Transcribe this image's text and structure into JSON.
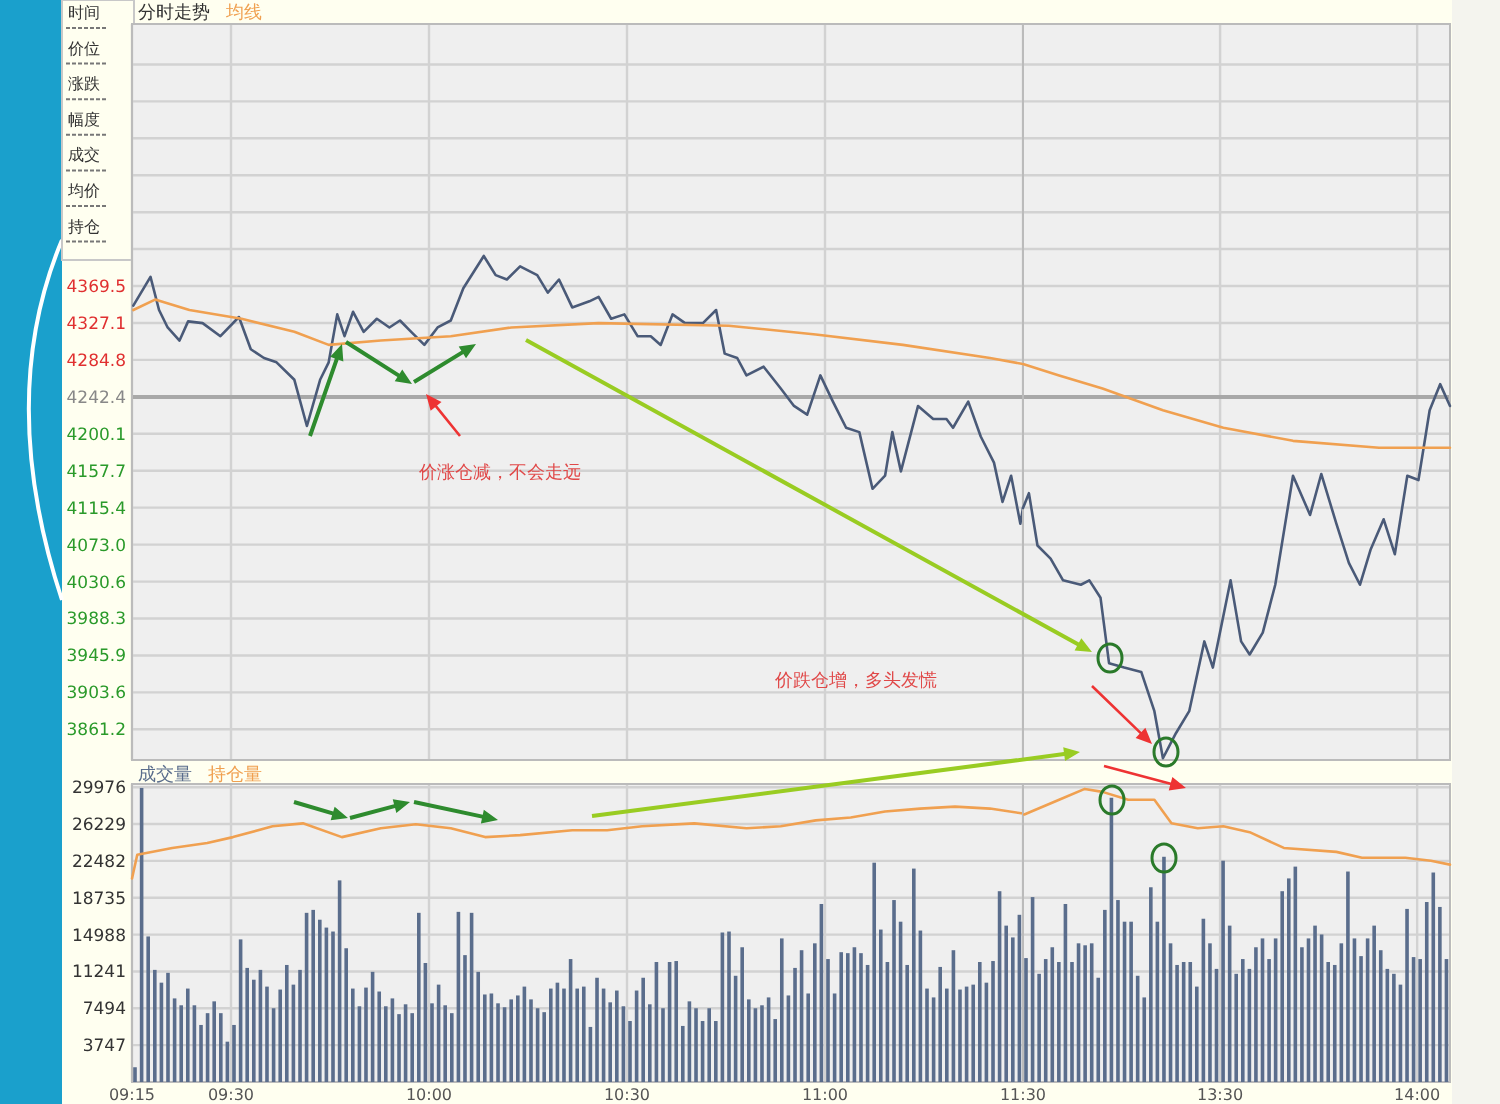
{
  "chart_data": [
    {
      "type": "line",
      "title": "分时走势",
      "xlim": [
        9.25,
        11.5
      ],
      "ylim": [
        3826,
        4670
      ],
      "xticks": [
        {
          "value": 9.25,
          "label": null
        },
        {
          "value": 9.5,
          "label": null
        },
        {
          "value": 10,
          "label": null
        },
        {
          "value": 10.5,
          "label": null
        },
        {
          "value": 11,
          "label": null
        },
        {
          "value": 11.5,
          "label": null
        }
      ],
      "yticks": [
        {
          "value": 4623.6,
          "label": null
        },
        {
          "value": 4581.3,
          "label": null
        },
        {
          "value": 4538.9,
          "label": null
        },
        {
          "value": 4496.6,
          "label": null
        },
        {
          "value": 4454.2,
          "label": null
        },
        {
          "value": 4411.9,
          "label": null
        },
        4369.5,
        4327.1,
        4284.8,
        4242.4,
        4200.1,
        4157.7,
        4115.4,
        {
          "value": 4073.0,
          "label": "4073.0"
        },
        4030.6,
        3988.3,
        3945.9,
        3903.6,
        3861.2
      ],
      "tick_labels": "y",
      "grid": true,
      "legend": "top left",
      "line_style": "solid",
      "ref_lines": [
        {
          "axis": "y",
          "value": 4242.4,
          "color": "#a8a8a8"
        }
      ],
      "annotations": [
        "价涨仓减，不会走远",
        "价跌仓增，多头发慌",
        "时间",
        "价位",
        "涨跌",
        "幅度",
        "成交",
        "均价",
        "持仓"
      ],
      "series": [
        {
          "color": "#4a5a78",
          "x": [
            9.2533,
            9.2967,
            9.3183,
            9.34,
            9.37,
            9.3917,
            9.4283,
            9.4733,
            9.52,
            9.55,
            9.5833,
            9.615,
            9.66,
            9.6917,
            9.725,
            9.7467,
            9.7683,
            9.7867,
            9.8083,
            9.835,
            9.8683,
            9.9,
            9.9267,
            9.955,
            9.9883,
            10.0217,
            10.055,
            10.0867,
            10.1383,
            10.1683,
            10.1967,
            10.23,
            10.2733,
            10.3,
            10.3283,
            10.3617,
            10.405,
            10.4283,
            10.46,
            10.4933,
            10.5267,
            10.56,
            10.585,
            10.615,
            10.6467,
            10.6917,
            10.725,
            10.7467,
            10.7783,
            10.8017,
            10.845,
            10.8883,
            10.9217,
            10.955,
            10.9883,
            11.02,
            11.0533,
            11.0867,
            11.12,
            11.1517,
            11.17,
            11.1917,
            11.235,
            11.2733,
            11.3067,
            11.3233,
            11.3617,
            11.3933,
            11.4267,
            11.4483,
            11.47,
            11.4933,
            11.5
          ],
          "values": [
            4347,
            4380,
            4342,
            4322,
            4307,
            4329,
            4327,
            4312,
            4334,
            4297,
            4287,
            4282,
            4262,
            4209,
            4262,
            4282,
            4337,
            4312,
            4340,
            4317,
            4332,
            4322,
            4330,
            4317,
            4302,
            4322,
            4330,
            4367,
            4404,
            4382,
            4377,
            4392,
            4382,
            4362,
            4377,
            4345,
            4352,
            4357,
            4332,
            4337,
            4312,
            4312,
            4302,
            4337,
            4327,
            4327,
            4342,
            4292,
            4287,
            4267,
            4277,
            4252,
            4232,
            4222,
            4267,
            4237,
            4207,
            4202,
            4137,
            4152,
            4202,
            4157,
            4232,
            4217,
            4217,
            4207,
            4237,
            4197,
            4167,
            4122,
            4152,
            4097,
            4115
          ]
        },
        {
          "name": "均线",
          "color": "#f0a050",
          "x": [
            9.2533,
            9.3083,
            9.395,
            9.5267,
            9.66,
            9.7467,
            9.8783,
            10.055,
            10.2083,
            10.4283,
            10.7567,
            10.9767,
            11.1967,
            11.4167,
            11.5
          ],
          "values": [
            4342,
            4354,
            4342,
            4332,
            4317,
            4302,
            4307,
            4312,
            4322,
            4327,
            4324,
            4314,
            4302,
            4287,
            4280
          ]
        }
      ]
    },
    {
      "type": "line",
      "xlim": [
        13,
        14.0833
      ],
      "ylim": [
        3826,
        4670
      ],
      "xticks": [
        {
          "value": 13.5,
          "label": null
        },
        {
          "value": 14,
          "label": null
        }
      ],
      "yticks": [
        {
          "value": 4623.6,
          "label": null
        },
        {
          "value": 4581.3,
          "label": null
        },
        {
          "value": 4538.9,
          "label": null
        },
        {
          "value": 4496.6,
          "label": null
        },
        {
          "value": 4454.2,
          "label": null
        },
        {
          "value": 4411.9,
          "label": null
        },
        4369.5,
        4327.1,
        4284.8,
        4242.4,
        4200.1,
        4157.7,
        4115.4,
        4073,
        4030.6,
        3988.3,
        3945.9,
        3903.6,
        3861.2
      ],
      "tick_labels": false,
      "grid": true,
      "line_style": "solid",
      "ref_lines": [
        {
          "axis": "y",
          "value": 4242.4,
          "color": "#a8a8a8"
        }
      ],
      "series": [
        {
          "color": "#4a5a78",
          "x": [
            13,
            13.015,
            13.0367,
            13.07,
            13.1017,
            13.1467,
            13.1683,
            13.1967,
            13.2183,
            13.2567,
            13.3,
            13.3333,
            13.355,
            13.3883,
            13.4217,
            13.46,
            13.4817,
            13.5267,
            13.5533,
            13.575,
            13.6083,
            13.64,
            13.685,
            13.7283,
            13.7567,
            13.795,
            13.8267,
            13.855,
            13.8817,
            13.915,
            13.9433,
            13.975,
            14.0033,
            14.0317,
            14.0583,
            14.0833
          ],
          "values": [
            4115,
            4132,
            4072,
            4057,
            4032,
            4027,
            4032,
            4012,
            3937,
            3932,
            3927,
            3882,
            3828,
            3857,
            3882,
            3962,
            3932,
            4032,
            3962,
            3947,
            3972,
            4027,
            4152,
            4107,
            4154,
            4097,
            4052,
            4027,
            4067,
            4102,
            4062,
            4152,
            4147,
            4227,
            4257,
            4232
          ]
        },
        {
          "color": "#f0a050",
          "x": [
            13,
            13.0917,
            13.2017,
            13.355,
            13.5083,
            13.685,
            13.9033,
            14.0833
          ],
          "values": [
            4280,
            4267,
            4252,
            4227,
            4207,
            4192,
            4184,
            4184
          ]
        }
      ]
    },
    {
      "type": "bar",
      "xlim": [
        9.25,
        11.5
      ],
      "ylim": [
        0,
        30300
      ],
      "xticks": [
        {
          "value": 9.25,
          "label": "09:15"
        },
        {
          "value": 9.5,
          "label": "09:30"
        },
        {
          "value": 10,
          "label": "10:00"
        },
        {
          "value": 10.5,
          "label": "10:30"
        },
        {
          "value": 11,
          "label": "11:00"
        },
        {
          "value": 11.5,
          "label": "11:30"
        }
      ],
      "yticks": [
        3747,
        7494,
        11241,
        14988,
        18735,
        22482,
        26229,
        29976
      ],
      "grid": true,
      "legend": "top left",
      "series": [
        {
          "name": "成交量",
          "color": "#5a6d8c",
          "x": [
            9.25,
            9.2667,
            9.2833,
            9.3,
            9.3167,
            9.3333,
            9.35,
            9.3667,
            9.3833,
            9.4,
            9.4167,
            9.4333,
            9.45,
            9.4667,
            9.4833,
            9.5,
            9.5167,
            9.5333,
            9.55,
            9.5667,
            9.5833,
            9.6,
            9.6167,
            9.6333,
            9.65,
            9.6667,
            9.6833,
            9.7,
            9.7167,
            9.7333,
            9.75,
            9.7667,
            9.7833,
            9.8,
            9.8167,
            9.8333,
            9.85,
            9.8667,
            9.8833,
            9.9,
            9.9167,
            9.9333,
            9.95,
            9.9667,
            9.9833,
            10,
            10.0167,
            10.0333,
            10.05,
            10.0667,
            10.0833,
            10.1,
            10.1167,
            10.1333,
            10.15,
            10.1667,
            10.1833,
            10.2,
            10.2167,
            10.2333,
            10.25,
            10.2667,
            10.2833,
            10.3,
            10.3167,
            10.3333,
            10.35,
            10.3667,
            10.3833,
            10.4,
            10.4167,
            10.4333,
            10.45,
            10.4667,
            10.4833,
            10.5,
            10.5167,
            10.5333,
            10.55,
            10.5667,
            10.5833,
            10.6,
            10.6167,
            10.6333,
            10.65,
            10.6667,
            10.6833,
            10.7,
            10.7167,
            10.7333,
            10.75,
            10.7667,
            10.7833,
            10.8,
            10.8167,
            10.8333,
            10.85,
            10.8667,
            10.8833,
            10.9,
            10.9167,
            10.9333,
            10.95,
            10.9667,
            10.9833,
            11,
            11.0167,
            11.0333,
            11.05,
            11.0667,
            11.0833,
            11.1,
            11.1167,
            11.1333,
            11.15,
            11.1667,
            11.1833,
            11.2,
            11.2167,
            11.2333,
            11.25,
            11.2667,
            11.2833,
            11.3,
            11.3167,
            11.3333,
            11.35,
            11.3667,
            11.3833,
            11.4,
            11.4167,
            11.4333,
            11.45,
            11.4667,
            11.4833
          ],
          "values": [
            1500,
            29900,
            14800,
            11400,
            10100,
            11100,
            8500,
            7800,
            9500,
            7800,
            5800,
            7000,
            8200,
            7000,
            4100,
            5800,
            14500,
            11600,
            10400,
            11400,
            9700,
            7500,
            9400,
            11900,
            9900,
            11400,
            17200,
            17500,
            16500,
            15700,
            15300,
            20500,
            13600,
            9500,
            7700,
            9600,
            11200,
            9200,
            7700,
            8500,
            6900,
            7900,
            7000,
            17200,
            12100,
            8000,
            9900,
            7800,
            7000,
            17300,
            12900,
            17200,
            11200,
            8900,
            9000,
            8000,
            7600,
            8400,
            8800,
            9700,
            8400,
            7500,
            7100,
            9500,
            10100,
            9500,
            12500,
            9500,
            9700,
            5600,
            10600,
            9500,
            8100,
            9300,
            7700,
            6200,
            9300,
            10600,
            7900,
            12200,
            7500,
            12200,
            12300,
            5700,
            8200,
            7500,
            6200,
            7500,
            6200,
            15200,
            15300,
            10800,
            13700,
            8400,
            7500,
            7800,
            8600,
            6400,
            14600,
            8800,
            11600,
            13400,
            9000,
            14100,
            18100,
            12500,
            9000,
            13200,
            13100,
            13700,
            13100,
            11900,
            22300,
            15500,
            12200,
            18500,
            16300,
            11900,
            21700,
            15400,
            9500,
            8600,
            11700,
            9500,
            13400,
            9400,
            9700,
            9900,
            12200,
            10100,
            12300,
            19400,
            15900,
            14700,
            17000
          ]
        },
        {
          "name": "持仓量",
          "type": "line",
          "color": "#f0a050",
          "x": [
            9.25,
            9.2633,
            9.3517,
            9.44,
            9.505,
            9.605,
            9.6817,
            9.78,
            9.8783,
            9.9667,
            10.055,
            10.1417,
            10.23,
            10.3617,
            10.45,
            10.5383,
            10.67,
            10.8017,
            10.8883,
            10.9767,
            11.065,
            11.1517,
            11.24,
            11.3283,
            11.4167,
            11.5
          ],
          "values": [
            20700,
            23100,
            23800,
            24300,
            24900,
            26000,
            26300,
            24900,
            25800,
            26200,
            25800,
            24900,
            25100,
            25600,
            25600,
            26000,
            26300,
            25800,
            26000,
            26600,
            26900,
            27500,
            27800,
            28000,
            27800,
            27300
          ]
        }
      ]
    },
    {
      "type": "bar",
      "xlim": [
        13,
        14.0833
      ],
      "ylim": [
        0,
        30300
      ],
      "xticks": [
        {
          "value": 13.5,
          "label": "13:30"
        },
        {
          "value": 14,
          "label": "14:00"
        }
      ],
      "yticks": [
        3747,
        7494,
        11241,
        14988,
        18735,
        22482,
        26229,
        29976
      ],
      "tick_labels": "x",
      "grid": true,
      "series": [
        {
          "color": "#5a6d8c",
          "x": [
            13,
            13.0167,
            13.0333,
            13.05,
            13.0667,
            13.0833,
            13.1,
            13.1167,
            13.1333,
            13.15,
            13.1667,
            13.1833,
            13.2,
            13.2167,
            13.2333,
            13.25,
            13.2667,
            13.2833,
            13.3,
            13.3167,
            13.3333,
            13.35,
            13.3667,
            13.3833,
            13.4,
            13.4167,
            13.4333,
            13.45,
            13.4667,
            13.4833,
            13.5,
            13.5167,
            13.5333,
            13.55,
            13.5667,
            13.5833,
            13.6,
            13.6167,
            13.6333,
            13.65,
            13.6667,
            13.6833,
            13.7,
            13.7167,
            13.7333,
            13.75,
            13.7667,
            13.7833,
            13.8,
            13.8167,
            13.8333,
            13.85,
            13.8667,
            13.8833,
            13.9,
            13.9167,
            13.9333,
            13.95,
            13.9667,
            13.9833,
            14,
            14.0167,
            14.0333,
            14.05,
            14.0667
          ],
          "values": [
            12600,
            18800,
            11000,
            12500,
            13700,
            12200,
            18100,
            12200,
            14100,
            13900,
            14100,
            10600,
            17500,
            28900,
            18500,
            16300,
            16300,
            10800,
            8600,
            19800,
            16300,
            22900,
            14100,
            11900,
            12200,
            12200,
            9700,
            16600,
            14100,
            11500,
            22500,
            15900,
            11000,
            12500,
            11500,
            13700,
            14600,
            12500,
            14600,
            19400,
            20700,
            21900,
            13700,
            14600,
            15900,
            15000,
            12200,
            11900,
            14100,
            21400,
            14600,
            12800,
            14600,
            15900,
            13400,
            11500,
            11000,
            9900,
            17600,
            12700,
            12500,
            18300,
            21300,
            17800,
            12500
          ]
        },
        {
          "type": "line",
          "color": "#f0a050",
          "x": [
            13.0033,
            13.0917,
            13.1567,
            13.2017,
            13.2667,
            13.3333,
            13.3767,
            13.4433,
            13.5083,
            13.575,
            13.6617,
            13.795,
            13.86,
            13.97,
            14.035,
            14.0833
          ],
          "values": [
            27200,
            28700,
            29800,
            29500,
            28700,
            28700,
            26300,
            25800,
            26000,
            25400,
            23800,
            23400,
            22800,
            22800,
            22500,
            22100
          ]
        }
      ]
    }
  ]
}
